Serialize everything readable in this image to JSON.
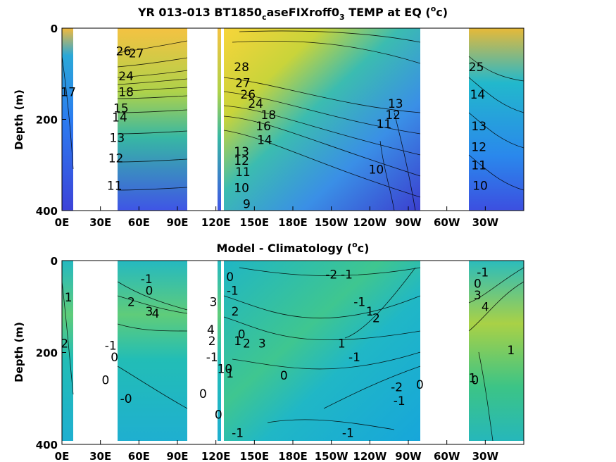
{
  "chart_data": [
    {
      "type": "heatmap",
      "title": "YR 013-013 BT1850",
      "title_sub": "c",
      "title_rest": "aseFIXroff0",
      "title_sub2": "3",
      "title_tail": " TEMP at EQ (",
      "title_sup": "o",
      "title_unit": "c)",
      "ylabel": "Depth (m)",
      "xlabel": "",
      "xlim": [
        0,
        360
      ],
      "ylim": [
        400,
        0
      ],
      "x_ticks": [
        {
          "lon": 0,
          "label": "0E"
        },
        {
          "lon": 30,
          "label": "30E"
        },
        {
          "lon": 60,
          "label": "60E"
        },
        {
          "lon": 90,
          "label": "90E"
        },
        {
          "lon": 120,
          "label": "120E"
        },
        {
          "lon": 150,
          "label": "150E"
        },
        {
          "lon": 180,
          "label": "180E"
        },
        {
          "lon": 210,
          "label": "150W"
        },
        {
          "lon": 240,
          "label": "120W"
        },
        {
          "lon": 270,
          "label": "90W"
        },
        {
          "lon": 300,
          "label": "60W"
        },
        {
          "lon": 330,
          "label": "30W"
        }
      ],
      "y_ticks": [
        {
          "depth": 0,
          "label": "0"
        },
        {
          "depth": 200,
          "label": "200"
        },
        {
          "depth": 400,
          "label": "400"
        }
      ],
      "land_masks_lon": [
        [
          7,
          42
        ],
        [
          97,
          113
        ],
        [
          125,
          127
        ],
        [
          283,
          314
        ]
      ],
      "contour_labels": [
        {
          "lon": 5,
          "depth": 140,
          "text": "17"
        },
        {
          "lon": 48,
          "depth": 50,
          "text": "26"
        },
        {
          "lon": 58,
          "depth": 55,
          "text": "27"
        },
        {
          "lon": 50,
          "depth": 105,
          "text": "24"
        },
        {
          "lon": 50,
          "depth": 140,
          "text": "18"
        },
        {
          "lon": 46,
          "depth": 175,
          "text": "15"
        },
        {
          "lon": 45,
          "depth": 195,
          "text": "14"
        },
        {
          "lon": 43,
          "depth": 240,
          "text": "13"
        },
        {
          "lon": 42,
          "depth": 285,
          "text": "12"
        },
        {
          "lon": 41,
          "depth": 345,
          "text": "11"
        },
        {
          "lon": 140,
          "depth": 85,
          "text": "28"
        },
        {
          "lon": 141,
          "depth": 120,
          "text": "27"
        },
        {
          "lon": 145,
          "depth": 145,
          "text": "26"
        },
        {
          "lon": 151,
          "depth": 165,
          "text": "24"
        },
        {
          "lon": 161,
          "depth": 190,
          "text": "18"
        },
        {
          "lon": 157,
          "depth": 215,
          "text": "16"
        },
        {
          "lon": 158,
          "depth": 245,
          "text": "14"
        },
        {
          "lon": 140,
          "depth": 270,
          "text": "13"
        },
        {
          "lon": 140,
          "depth": 290,
          "text": "12"
        },
        {
          "lon": 141,
          "depth": 315,
          "text": "11"
        },
        {
          "lon": 140,
          "depth": 350,
          "text": "10"
        },
        {
          "lon": 144,
          "depth": 385,
          "text": "9"
        },
        {
          "lon": 260,
          "depth": 165,
          "text": "13"
        },
        {
          "lon": 258,
          "depth": 190,
          "text": "12"
        },
        {
          "lon": 251,
          "depth": 210,
          "text": "11"
        },
        {
          "lon": 245,
          "depth": 310,
          "text": "10"
        },
        {
          "lon": 323,
          "depth": 85,
          "text": "25"
        },
        {
          "lon": 324,
          "depth": 145,
          "text": "14"
        },
        {
          "lon": 325,
          "depth": 215,
          "text": "13"
        },
        {
          "lon": 325,
          "depth": 260,
          "text": "12"
        },
        {
          "lon": 325,
          "depth": 300,
          "text": "11"
        },
        {
          "lon": 326,
          "depth": 345,
          "text": "10"
        }
      ]
    },
    {
      "type": "heatmap",
      "title": "Model - Climatology (",
      "title_sup": "o",
      "title_unit": "c)",
      "ylabel": "Depth (m)",
      "xlabel": "",
      "xlim": [
        0,
        360
      ],
      "ylim": [
        400,
        0
      ],
      "x_ticks": [
        {
          "lon": 0,
          "label": "0E"
        },
        {
          "lon": 30,
          "label": "30E"
        },
        {
          "lon": 60,
          "label": "60E"
        },
        {
          "lon": 90,
          "label": "90E"
        },
        {
          "lon": 120,
          "label": "120E"
        },
        {
          "lon": 150,
          "label": "150E"
        },
        {
          "lon": 180,
          "label": "180E"
        },
        {
          "lon": 210,
          "label": "150W"
        },
        {
          "lon": 240,
          "label": "120W"
        },
        {
          "lon": 270,
          "label": "90W"
        },
        {
          "lon": 300,
          "label": "60W"
        },
        {
          "lon": 330,
          "label": "30W"
        }
      ],
      "y_ticks": [
        {
          "depth": 0,
          "label": "0"
        },
        {
          "depth": 200,
          "label": "200"
        },
        {
          "depth": 400,
          "label": "400"
        }
      ],
      "land_masks_lon": [
        [
          7,
          42
        ],
        [
          97,
          113
        ],
        [
          125,
          127
        ],
        [
          283,
          314
        ]
      ],
      "contour_labels": [
        {
          "lon": 5,
          "depth": 80,
          "text": "1"
        },
        {
          "lon": 2,
          "depth": 180,
          "text": "2"
        },
        {
          "lon": 38,
          "depth": 185,
          "text": "-1"
        },
        {
          "lon": 41,
          "depth": 210,
          "text": "0"
        },
        {
          "lon": 34,
          "depth": 260,
          "text": "0"
        },
        {
          "lon": 50,
          "depth": 300,
          "text": "-0"
        },
        {
          "lon": 66,
          "depth": 40,
          "text": "-1"
        },
        {
          "lon": 68,
          "depth": 65,
          "text": "0"
        },
        {
          "lon": 54,
          "depth": 90,
          "text": "2"
        },
        {
          "lon": 68,
          "depth": 110,
          "text": "3"
        },
        {
          "lon": 73,
          "depth": 115,
          "text": "4"
        },
        {
          "lon": 118,
          "depth": 90,
          "text": "3"
        },
        {
          "lon": 116,
          "depth": 150,
          "text": "4"
        },
        {
          "lon": 117,
          "depth": 175,
          "text": "2"
        },
        {
          "lon": 117,
          "depth": 210,
          "text": "-1"
        },
        {
          "lon": 110,
          "depth": 290,
          "text": "0"
        },
        {
          "lon": 122,
          "depth": 335,
          "text": "0"
        },
        {
          "lon": 131,
          "depth": 35,
          "text": "0"
        },
        {
          "lon": 133,
          "depth": 65,
          "text": "-1"
        },
        {
          "lon": 135,
          "depth": 110,
          "text": "2"
        },
        {
          "lon": 140,
          "depth": 160,
          "text": "0"
        },
        {
          "lon": 137,
          "depth": 175,
          "text": "1"
        },
        {
          "lon": 144,
          "depth": 180,
          "text": "2"
        },
        {
          "lon": 156,
          "depth": 180,
          "text": "3"
        },
        {
          "lon": 127,
          "depth": 235,
          "text": "10"
        },
        {
          "lon": 131,
          "depth": 245,
          "text": "1"
        },
        {
          "lon": 137,
          "depth": 375,
          "text": "-1"
        },
        {
          "lon": 173,
          "depth": 250,
          "text": "0"
        },
        {
          "lon": 210,
          "depth": 30,
          "text": "-2"
        },
        {
          "lon": 222,
          "depth": 30,
          "text": "-1"
        },
        {
          "lon": 218,
          "depth": 180,
          "text": "1"
        },
        {
          "lon": 228,
          "depth": 210,
          "text": "-1"
        },
        {
          "lon": 232,
          "depth": 90,
          "text": "-1"
        },
        {
          "lon": 240,
          "depth": 110,
          "text": "1"
        },
        {
          "lon": 245,
          "depth": 125,
          "text": "2"
        },
        {
          "lon": 261,
          "depth": 275,
          "text": "-2"
        },
        {
          "lon": 263,
          "depth": 305,
          "text": "-1"
        },
        {
          "lon": 223,
          "depth": 375,
          "text": "-1"
        },
        {
          "lon": 279,
          "depth": 270,
          "text": "0"
        },
        {
          "lon": 328,
          "depth": 25,
          "text": "-1"
        },
        {
          "lon": 324,
          "depth": 50,
          "text": "0"
        },
        {
          "lon": 324,
          "depth": 75,
          "text": "3"
        },
        {
          "lon": 330,
          "depth": 100,
          "text": "4"
        },
        {
          "lon": 350,
          "depth": 195,
          "text": "1"
        },
        {
          "lon": 320,
          "depth": 255,
          "text": "1"
        },
        {
          "lon": 322,
          "depth": 260,
          "text": "0"
        }
      ]
    }
  ]
}
